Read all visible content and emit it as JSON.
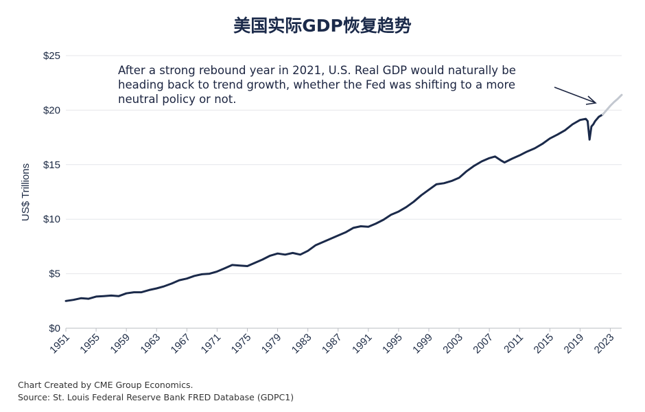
{
  "chart_data": {
    "type": "line",
    "title": "美国实际GDP恢复趋势",
    "ylabel": "US$ Trillions",
    "xlabel": "",
    "ylim": [
      0,
      25
    ],
    "xlim": [
      1951,
      2024.5
    ],
    "y_ticks": [
      {
        "value": 0,
        "label": "$0"
      },
      {
        "value": 5,
        "label": "$5"
      },
      {
        "value": 10,
        "label": "$10"
      },
      {
        "value": 15,
        "label": "$15"
      },
      {
        "value": 20,
        "label": "$20"
      },
      {
        "value": 25,
        "label": "$25"
      }
    ],
    "x_ticks": [
      "1951",
      "1955",
      "1959",
      "1963",
      "1967",
      "1971",
      "1975",
      "1979",
      "1983",
      "1987",
      "1991",
      "1995",
      "1999",
      "2003",
      "2007",
      "2011",
      "2015",
      "2019",
      "2023"
    ],
    "grid": "horizontal",
    "annotation": "After a strong rebound year in 2021, U.S. Real GDP would naturally be heading back to trend growth, whether the Fed was shifting to a more neutral policy or not.",
    "series": [
      {
        "color": "#1b2a4a",
        "points": [
          [
            1951,
            2.5
          ],
          [
            1952,
            2.6
          ],
          [
            1953,
            2.75
          ],
          [
            1954,
            2.7
          ],
          [
            1955,
            2.9
          ],
          [
            1956,
            2.95
          ],
          [
            1957,
            3.0
          ],
          [
            1958,
            2.95
          ],
          [
            1959,
            3.2
          ],
          [
            1960,
            3.3
          ],
          [
            1961,
            3.3
          ],
          [
            1962,
            3.5
          ],
          [
            1963,
            3.65
          ],
          [
            1964,
            3.85
          ],
          [
            1965,
            4.1
          ],
          [
            1966,
            4.4
          ],
          [
            1967,
            4.55
          ],
          [
            1968,
            4.8
          ],
          [
            1969,
            4.95
          ],
          [
            1970,
            5.0
          ],
          [
            1971,
            5.2
          ],
          [
            1972,
            5.5
          ],
          [
            1973,
            5.8
          ],
          [
            1974,
            5.75
          ],
          [
            1975,
            5.7
          ],
          [
            1976,
            6.0
          ],
          [
            1977,
            6.3
          ],
          [
            1978,
            6.65
          ],
          [
            1979,
            6.85
          ],
          [
            1980,
            6.75
          ],
          [
            1981,
            6.9
          ],
          [
            1982,
            6.75
          ],
          [
            1983,
            7.1
          ],
          [
            1984,
            7.6
          ],
          [
            1985,
            7.9
          ],
          [
            1986,
            8.2
          ],
          [
            1987,
            8.5
          ],
          [
            1988,
            8.8
          ],
          [
            1989,
            9.2
          ],
          [
            1990,
            9.35
          ],
          [
            1991,
            9.3
          ],
          [
            1992,
            9.6
          ],
          [
            1993,
            9.95
          ],
          [
            1994,
            10.4
          ],
          [
            1995,
            10.7
          ],
          [
            1996,
            11.1
          ],
          [
            1997,
            11.6
          ],
          [
            1998,
            12.2
          ],
          [
            1999,
            12.7
          ],
          [
            2000,
            13.2
          ],
          [
            2001,
            13.3
          ],
          [
            2002,
            13.5
          ],
          [
            2003,
            13.8
          ],
          [
            2004,
            14.4
          ],
          [
            2005,
            14.9
          ],
          [
            2006,
            15.3
          ],
          [
            2007,
            15.6
          ],
          [
            2007.75,
            15.75
          ],
          [
            2008.5,
            15.4
          ],
          [
            2009,
            15.2
          ],
          [
            2010,
            15.55
          ],
          [
            2011,
            15.85
          ],
          [
            2012,
            16.2
          ],
          [
            2013,
            16.5
          ],
          [
            2014,
            16.9
          ],
          [
            2015,
            17.4
          ],
          [
            2016,
            17.75
          ],
          [
            2017,
            18.15
          ],
          [
            2018,
            18.7
          ],
          [
            2019,
            19.1
          ],
          [
            2019.75,
            19.2
          ],
          [
            2020.0,
            19.0
          ],
          [
            2020.25,
            17.3
          ],
          [
            2020.5,
            18.5
          ],
          [
            2020.75,
            18.7
          ],
          [
            2021,
            19.0
          ],
          [
            2021.5,
            19.4
          ],
          [
            2022,
            19.6
          ]
        ]
      },
      {
        "color": "#c3c8d0",
        "points": [
          [
            2022,
            19.6
          ],
          [
            2022.5,
            20.0
          ],
          [
            2023,
            20.4
          ],
          [
            2023.5,
            20.75
          ],
          [
            2024,
            21.05
          ],
          [
            2024.5,
            21.4
          ]
        ]
      }
    ]
  },
  "footer": {
    "line1": "Chart Created by CME Group Economics.",
    "line2": "Source: St. Louis Federal Reserve Bank FRED Database (GDPC1)"
  }
}
